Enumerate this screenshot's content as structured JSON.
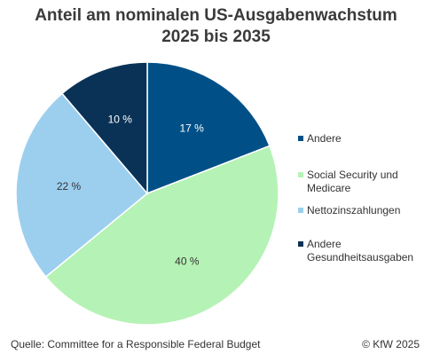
{
  "title_line1": "Anteil am nominalen US-Ausgabenwachstum",
  "title_line2": "2025 bis 2035",
  "chart_data": {
    "type": "pie",
    "title": "Anteil am nominalen US-Ausgabenwachstum 2025 bis 2035",
    "start_angle": "12 o'clock, clockwise",
    "slices": [
      {
        "name": "Andere",
        "value": 17,
        "label": "17 %",
        "color": "#005087",
        "label_color": "#ffffff"
      },
      {
        "name": "Social Security und Medicare",
        "value": 40,
        "label": "40 %",
        "color": "#b5f2b5",
        "label_color": "#333333"
      },
      {
        "name": "Nettozinszahlungen",
        "value": 22,
        "label": "22 %",
        "color": "#9ccfee",
        "label_color": "#333333"
      },
      {
        "name": "Andere Gesundheitsausgaben",
        "value": 10,
        "label": "10 %",
        "color": "#0a3256",
        "label_color": "#ffffff"
      }
    ],
    "legend_position": "right"
  },
  "legend": [
    {
      "lines": [
        "Andere"
      ]
    },
    {
      "lines": [
        "Social Security und",
        "Medicare"
      ]
    },
    {
      "lines": [
        "Nettozinszahlungen"
      ]
    },
    {
      "lines": [
        "Andere",
        "Gesundheitsausgaben"
      ]
    }
  ],
  "footer": {
    "source": "Quelle: Committee for a Responsible Federal Budget",
    "copyright": "© KfW 2025"
  }
}
